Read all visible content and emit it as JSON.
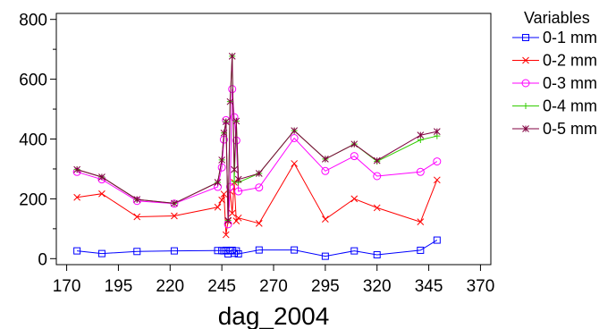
{
  "chart_data": {
    "type": "line",
    "title": "",
    "xlabel": "dag_2004",
    "ylabel": "",
    "xlim": [
      165,
      375
    ],
    "ylim": [
      -20,
      820
    ],
    "xticks": [
      170,
      195,
      220,
      245,
      270,
      295,
      320,
      345,
      370
    ],
    "yticks": [
      0,
      200,
      400,
      600,
      800
    ],
    "grid": false,
    "legend": {
      "title": "Variables",
      "placement": "right"
    },
    "series": [
      {
        "name": "0-1 mm",
        "color": "#0000ff",
        "marker": "square",
        "points": [
          [
            175,
            26
          ],
          [
            187,
            17
          ],
          [
            204,
            24
          ],
          [
            222,
            26
          ],
          [
            243,
            27
          ],
          [
            245,
            27
          ],
          [
            246,
            26
          ],
          [
            247,
            28
          ],
          [
            248,
            16
          ],
          [
            249,
            26
          ],
          [
            250,
            28
          ],
          [
            251,
            18
          ],
          [
            252,
            26
          ],
          [
            253,
            16
          ],
          [
            263,
            29
          ],
          [
            280,
            29
          ],
          [
            295,
            8
          ],
          [
            309,
            26
          ],
          [
            320,
            13
          ],
          [
            341,
            28
          ],
          [
            349,
            62
          ]
        ]
      },
      {
        "name": "0-2 mm",
        "color": "#ff0000",
        "marker": "x",
        "points": [
          [
            175,
            205
          ],
          [
            187,
            217
          ],
          [
            204,
            140
          ],
          [
            222,
            143
          ],
          [
            243,
            172
          ],
          [
            245,
            196
          ],
          [
            246,
            216
          ],
          [
            247,
            80
          ],
          [
            248,
            126
          ],
          [
            249,
            225
          ],
          [
            250,
            152
          ],
          [
            251,
            255
          ],
          [
            252,
            126
          ],
          [
            253,
            136
          ],
          [
            263,
            118
          ],
          [
            280,
            318
          ],
          [
            295,
            132
          ],
          [
            309,
            200
          ],
          [
            320,
            170
          ],
          [
            341,
            123
          ],
          [
            349,
            263
          ]
        ]
      },
      {
        "name": "0-3 mm",
        "color": "#ff00ff",
        "marker": "circle",
        "points": [
          [
            175,
            290
          ],
          [
            187,
            265
          ],
          [
            204,
            193
          ],
          [
            222,
            184
          ],
          [
            243,
            240
          ],
          [
            245,
            305
          ],
          [
            246,
            398
          ],
          [
            247,
            463
          ],
          [
            248,
            115
          ],
          [
            249,
            240
          ],
          [
            250,
            567
          ],
          [
            251,
            473
          ],
          [
            252,
            395
          ],
          [
            253,
            225
          ],
          [
            263,
            238
          ],
          [
            280,
            403
          ],
          [
            295,
            293
          ],
          [
            309,
            343
          ],
          [
            320,
            276
          ],
          [
            341,
            290
          ],
          [
            349,
            325
          ]
        ]
      },
      {
        "name": "0-4 mm",
        "color": "#33cc00",
        "marker": "plus",
        "points": [
          [
            175,
            298
          ],
          [
            187,
            273
          ],
          [
            204,
            198
          ],
          [
            222,
            185
          ],
          [
            243,
            255
          ],
          [
            245,
            330
          ],
          [
            246,
            420
          ],
          [
            247,
            458
          ],
          [
            248,
            128
          ],
          [
            249,
            525
          ],
          [
            250,
            677
          ],
          [
            251,
            258
          ],
          [
            252,
            460
          ],
          [
            253,
            255
          ],
          [
            263,
            285
          ],
          [
            280,
            428
          ],
          [
            295,
            333
          ],
          [
            309,
            383
          ],
          [
            320,
            325
          ],
          [
            341,
            397
          ],
          [
            349,
            410
          ]
        ]
      },
      {
        "name": "0-5 mm",
        "color": "#800040",
        "marker": "asterisk",
        "points": [
          [
            175,
            298
          ],
          [
            187,
            273
          ],
          [
            204,
            198
          ],
          [
            222,
            185
          ],
          [
            243,
            255
          ],
          [
            245,
            330
          ],
          [
            246,
            420
          ],
          [
            247,
            458
          ],
          [
            248,
            128
          ],
          [
            249,
            525
          ],
          [
            250,
            677
          ],
          [
            251,
            298
          ],
          [
            252,
            460
          ],
          [
            253,
            265
          ],
          [
            263,
            285
          ],
          [
            280,
            428
          ],
          [
            295,
            333
          ],
          [
            309,
            383
          ],
          [
            320,
            328
          ],
          [
            341,
            413
          ],
          [
            349,
            425
          ]
        ]
      }
    ]
  }
}
